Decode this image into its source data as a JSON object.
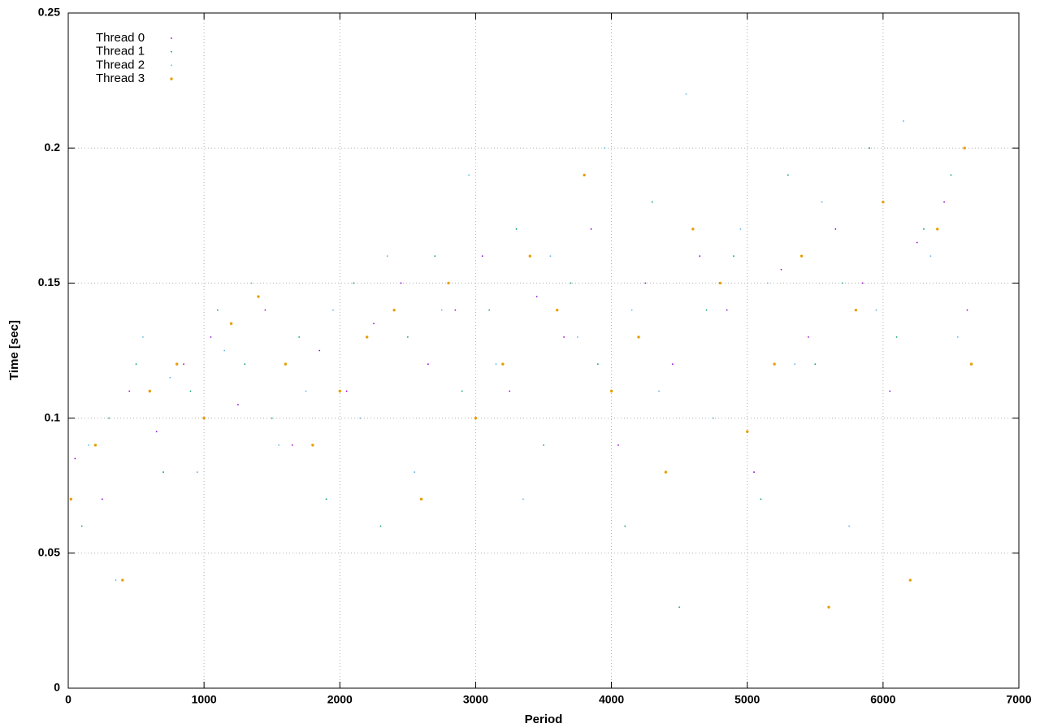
{
  "chart_data": {
    "type": "scatter",
    "x_label": "Period",
    "y_label": "Time [sec]",
    "xlim": [
      0,
      7000
    ],
    "xticks": [
      0,
      1000,
      2000,
      3000,
      4000,
      5000,
      6000,
      7000
    ],
    "ylim": [
      0,
      0.25
    ],
    "yticks": [
      0,
      0.05,
      0.1,
      0.15,
      0.2,
      0.25
    ],
    "grid": true,
    "legend": "upper-left",
    "series": [
      {
        "name": "Thread 0",
        "color": "#9400d3",
        "x": [
          50,
          250,
          450,
          650,
          850,
          1050,
          1250,
          1450,
          1650,
          1850,
          2050,
          2250,
          2450,
          2650,
          2850,
          3050,
          3250,
          3450,
          3650,
          3850,
          4050,
          4250,
          4450,
          4650,
          4850,
          5050,
          5250,
          5450,
          5650,
          5850,
          6050,
          6250,
          6450,
          6620
        ],
        "values": [
          0.085,
          0.07,
          0.11,
          0.095,
          0.12,
          0.13,
          0.105,
          0.14,
          0.09,
          0.125,
          0.11,
          0.135,
          0.15,
          0.12,
          0.14,
          0.16,
          0.11,
          0.145,
          0.13,
          0.17,
          0.09,
          0.15,
          0.12,
          0.16,
          0.14,
          0.08,
          0.155,
          0.13,
          0.17,
          0.15,
          0.11,
          0.165,
          0.18,
          0.14
        ]
      },
      {
        "name": "Thread 1",
        "color": "#009e73",
        "x": [
          100,
          300,
          500,
          700,
          900,
          1100,
          1300,
          1500,
          1700,
          1900,
          2100,
          2300,
          2500,
          2700,
          2900,
          3100,
          3300,
          3500,
          3700,
          3900,
          4100,
          4300,
          4500,
          4700,
          4900,
          5100,
          5300,
          5500,
          5700,
          5900,
          6100,
          6300,
          6500
        ],
        "values": [
          0.06,
          0.1,
          0.12,
          0.08,
          0.11,
          0.14,
          0.12,
          0.1,
          0.13,
          0.07,
          0.15,
          0.06,
          0.13,
          0.16,
          0.11,
          0.14,
          0.17,
          0.09,
          0.15,
          0.12,
          0.06,
          0.18,
          0.03,
          0.14,
          0.16,
          0.07,
          0.19,
          0.12,
          0.15,
          0.2,
          0.13,
          0.17,
          0.19
        ]
      },
      {
        "name": "Thread 2",
        "color": "#56b4e9",
        "x": [
          150,
          350,
          550,
          750,
          950,
          1150,
          1350,
          1550,
          1750,
          1950,
          2150,
          2350,
          2550,
          2750,
          2950,
          3150,
          3350,
          3550,
          3750,
          3950,
          4150,
          4350,
          4550,
          4750,
          4950,
          5150,
          5350,
          5550,
          5750,
          5950,
          6150,
          6350,
          6550
        ],
        "values": [
          0.09,
          0.04,
          0.13,
          0.115,
          0.08,
          0.125,
          0.15,
          0.09,
          0.11,
          0.14,
          0.1,
          0.16,
          0.08,
          0.14,
          0.19,
          0.12,
          0.07,
          0.16,
          0.13,
          0.2,
          0.14,
          0.11,
          0.22,
          0.1,
          0.17,
          0.15,
          0.12,
          0.18,
          0.06,
          0.14,
          0.21,
          0.16,
          0.13
        ]
      },
      {
        "name": "Thread 3",
        "color": "#e69f00",
        "x": [
          20,
          200,
          400,
          600,
          800,
          1000,
          1200,
          1400,
          1600,
          1800,
          2000,
          2200,
          2400,
          2600,
          2800,
          3000,
          3200,
          3400,
          3600,
          3800,
          4000,
          4200,
          4400,
          4600,
          4800,
          5000,
          5200,
          5400,
          5600,
          5800,
          6000,
          6200,
          6400,
          6600,
          6650
        ],
        "values": [
          0.07,
          0.09,
          0.04,
          0.11,
          0.12,
          0.1,
          0.135,
          0.145,
          0.12,
          0.09,
          0.11,
          0.13,
          0.14,
          0.07,
          0.15,
          0.1,
          0.12,
          0.16,
          0.14,
          0.19,
          0.11,
          0.13,
          0.08,
          0.17,
          0.15,
          0.095,
          0.12,
          0.16,
          0.03,
          0.14,
          0.18,
          0.04,
          0.17,
          0.2,
          0.12
        ]
      }
    ]
  }
}
